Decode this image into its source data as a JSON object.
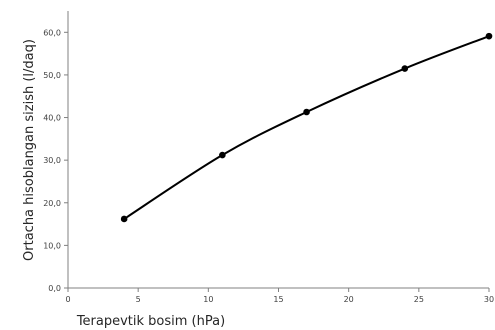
{
  "chart_data": {
    "type": "scatter",
    "title": "",
    "xlabel": "Terapevtik bosim (hPa)",
    "ylabel": "Ortacha hisoblangan sizish (l/daq)",
    "xlim": [
      0,
      30
    ],
    "ylim": [
      0,
      65
    ],
    "x_ticks": [
      "0",
      "5",
      "10",
      "15",
      "20",
      "25",
      "30"
    ],
    "y_ticks": [
      "0,0",
      "10,0",
      "20,0",
      "30,0",
      "40,0",
      "50,0",
      "60,0"
    ],
    "grid": false,
    "legend": "none",
    "smoothed_line": true,
    "line_color": "#000000",
    "marker_color": "#000000",
    "series": [
      {
        "x": [
          4,
          11,
          17,
          24,
          30
        ],
        "y": [
          16.2,
          31.2,
          41.3,
          51.5,
          59.1
        ]
      }
    ]
  }
}
